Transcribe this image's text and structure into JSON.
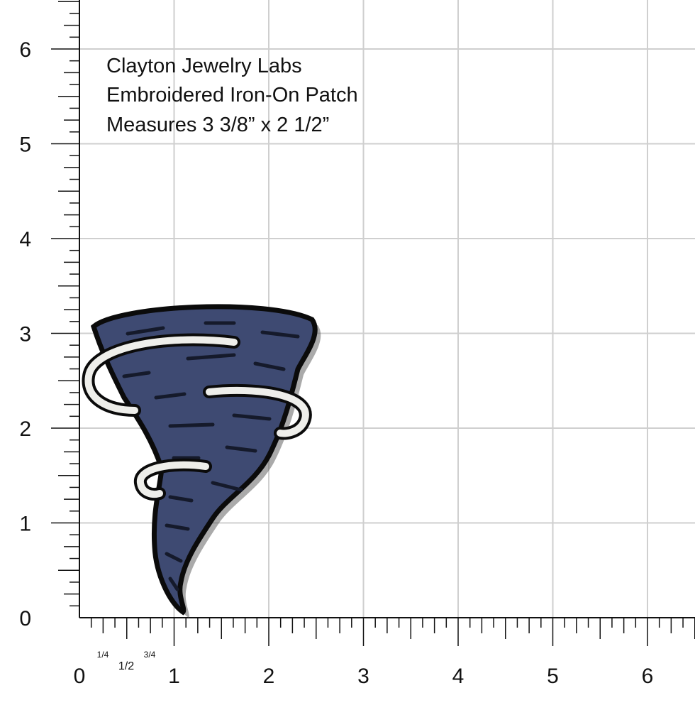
{
  "caption": [
    "Clayton Jewelry Labs",
    "Embroidered Iron-On Patch",
    "Measures 3 3/8” x 2 1/2”"
  ],
  "ruler": {
    "x_labels": [
      0,
      1,
      2,
      3,
      4,
      5,
      6
    ],
    "y_labels": [
      0,
      1,
      2,
      3,
      4,
      5,
      6
    ],
    "fractions": [
      "1/4",
      "1/2",
      "3/4"
    ]
  }
}
